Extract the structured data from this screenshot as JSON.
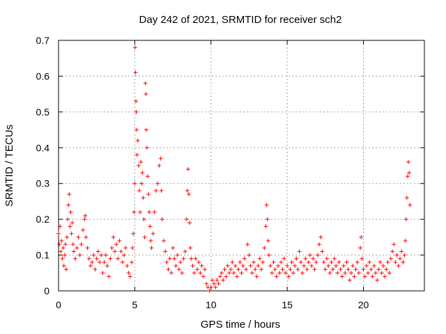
{
  "chart_data": {
    "type": "scatter",
    "title": "Day 242 of 2021, SRMTID for receiver sch2",
    "xlabel": "GPS time / hours",
    "ylabel": "SRMTID / TECUs",
    "xlim": [
      0,
      24
    ],
    "ylim": [
      0,
      0.7
    ],
    "xticks": [
      0,
      5,
      10,
      15,
      20
    ],
    "xtick_labels": [
      "0",
      "5",
      "10",
      "15",
      "20"
    ],
    "yticks": [
      0,
      0.1,
      0.2,
      0.3,
      0.4,
      0.5,
      0.6,
      0.7
    ],
    "ytick_labels": [
      "0",
      "0.1",
      "0.2",
      "0.3",
      "0.4",
      "0.5",
      "0.6",
      "0.7"
    ],
    "grid": true,
    "marker": "+",
    "series": [
      {
        "name": "sch2",
        "color": "#ff0000",
        "points": [
          [
            0.0,
            0.16
          ],
          [
            0.05,
            0.13
          ],
          [
            0.1,
            0.18
          ],
          [
            0.15,
            0.11
          ],
          [
            0.2,
            0.14
          ],
          [
            0.25,
            0.09
          ],
          [
            0.3,
            0.12
          ],
          [
            0.35,
            0.07
          ],
          [
            0.4,
            0.1
          ],
          [
            0.45,
            0.13
          ],
          [
            0.5,
            0.06
          ],
          [
            0.55,
            0.15
          ],
          [
            0.6,
            0.2
          ],
          [
            0.65,
            0.24
          ],
          [
            0.7,
            0.27
          ],
          [
            0.75,
            0.18
          ],
          [
            0.8,
            0.22
          ],
          [
            0.85,
            0.16
          ],
          [
            0.9,
            0.19
          ],
          [
            0.95,
            0.13
          ],
          [
            1.0,
            0.11
          ],
          [
            1.1,
            0.09
          ],
          [
            1.2,
            0.12
          ],
          [
            1.3,
            0.15
          ],
          [
            1.4,
            0.1
          ],
          [
            1.5,
            0.13
          ],
          [
            1.6,
            0.17
          ],
          [
            1.7,
            0.2
          ],
          [
            1.75,
            0.21
          ],
          [
            1.8,
            0.15
          ],
          [
            1.9,
            0.12
          ],
          [
            2.0,
            0.09
          ],
          [
            2.1,
            0.07
          ],
          [
            2.2,
            0.08
          ],
          [
            2.3,
            0.1
          ],
          [
            2.4,
            0.06
          ],
          [
            2.5,
            0.09
          ],
          [
            2.6,
            0.11
          ],
          [
            2.7,
            0.08
          ],
          [
            2.8,
            0.1
          ],
          [
            2.9,
            0.05
          ],
          [
            3.0,
            0.08
          ],
          [
            3.1,
            0.1
          ],
          [
            3.2,
            0.07
          ],
          [
            3.3,
            0.04
          ],
          [
            3.4,
            0.09
          ],
          [
            3.5,
            0.12
          ],
          [
            3.6,
            0.15
          ],
          [
            3.7,
            0.11
          ],
          [
            3.8,
            0.13
          ],
          [
            3.9,
            0.09
          ],
          [
            4.0,
            0.14
          ],
          [
            4.1,
            0.11
          ],
          [
            4.2,
            0.08
          ],
          [
            4.3,
            0.1
          ],
          [
            4.4,
            0.12
          ],
          [
            4.5,
            0.07
          ],
          [
            4.6,
            0.05
          ],
          [
            4.7,
            0.04
          ],
          [
            4.8,
            0.08
          ],
          [
            4.85,
            0.12
          ],
          [
            4.9,
            0.16
          ],
          [
            4.95,
            0.22
          ],
          [
            5.0,
            0.3
          ],
          [
            5.02,
            0.68
          ],
          [
            5.05,
            0.61
          ],
          [
            5.08,
            0.53
          ],
          [
            5.1,
            0.5
          ],
          [
            5.12,
            0.45
          ],
          [
            5.15,
            0.38
          ],
          [
            5.2,
            0.42
          ],
          [
            5.25,
            0.35
          ],
          [
            5.3,
            0.28
          ],
          [
            5.35,
            0.22
          ],
          [
            5.4,
            0.36
          ],
          [
            5.45,
            0.3
          ],
          [
            5.5,
            0.33
          ],
          [
            5.55,
            0.26
          ],
          [
            5.6,
            0.2
          ],
          [
            5.65,
            0.15
          ],
          [
            5.7,
            0.58
          ],
          [
            5.73,
            0.55
          ],
          [
            5.76,
            0.45
          ],
          [
            5.8,
            0.4
          ],
          [
            5.85,
            0.32
          ],
          [
            5.9,
            0.27
          ],
          [
            5.95,
            0.22
          ],
          [
            6.0,
            0.18
          ],
          [
            6.05,
            0.14
          ],
          [
            6.1,
            0.12
          ],
          [
            6.2,
            0.16
          ],
          [
            6.3,
            0.22
          ],
          [
            6.4,
            0.28
          ],
          [
            6.5,
            0.3
          ],
          [
            6.6,
            0.35
          ],
          [
            6.7,
            0.37
          ],
          [
            6.75,
            0.28
          ],
          [
            6.8,
            0.2
          ],
          [
            6.9,
            0.14
          ],
          [
            7.0,
            0.11
          ],
          [
            7.1,
            0.08
          ],
          [
            7.2,
            0.06
          ],
          [
            7.3,
            0.09
          ],
          [
            7.4,
            0.05
          ],
          [
            7.5,
            0.12
          ],
          [
            7.6,
            0.09
          ],
          [
            7.7,
            0.07
          ],
          [
            7.8,
            0.1
          ],
          [
            7.9,
            0.06
          ],
          [
            8.0,
            0.08
          ],
          [
            8.1,
            0.05
          ],
          [
            8.2,
            0.09
          ],
          [
            8.3,
            0.11
          ],
          [
            8.4,
            0.2
          ],
          [
            8.45,
            0.28
          ],
          [
            8.5,
            0.34
          ],
          [
            8.55,
            0.27
          ],
          [
            8.6,
            0.19
          ],
          [
            8.65,
            0.12
          ],
          [
            8.7,
            0.09
          ],
          [
            8.8,
            0.07
          ],
          [
            8.9,
            0.05
          ],
          [
            9.0,
            0.09
          ],
          [
            9.1,
            0.06
          ],
          [
            9.2,
            0.08
          ],
          [
            9.3,
            0.05
          ],
          [
            9.4,
            0.07
          ],
          [
            9.5,
            0.04
          ],
          [
            9.6,
            0.06
          ],
          [
            9.7,
            0.02
          ],
          [
            9.8,
            0.01
          ],
          [
            9.9,
            0.0
          ],
          [
            10.0,
            0.01
          ],
          [
            10.1,
            0.03
          ],
          [
            10.2,
            0.02
          ],
          [
            10.3,
            0.01
          ],
          [
            10.4,
            0.03
          ],
          [
            10.5,
            0.02
          ],
          [
            10.6,
            0.04
          ],
          [
            10.7,
            0.05
          ],
          [
            10.8,
            0.03
          ],
          [
            10.9,
            0.06
          ],
          [
            11.0,
            0.04
          ],
          [
            11.1,
            0.07
          ],
          [
            11.2,
            0.05
          ],
          [
            11.3,
            0.06
          ],
          [
            11.4,
            0.08
          ],
          [
            11.5,
            0.05
          ],
          [
            11.6,
            0.07
          ],
          [
            11.7,
            0.04
          ],
          [
            11.8,
            0.06
          ],
          [
            11.9,
            0.08
          ],
          [
            12.0,
            0.05
          ],
          [
            12.1,
            0.07
          ],
          [
            12.2,
            0.09
          ],
          [
            12.3,
            0.06
          ],
          [
            12.4,
            0.13
          ],
          [
            12.5,
            0.1
          ],
          [
            12.6,
            0.07
          ],
          [
            12.7,
            0.05
          ],
          [
            12.8,
            0.08
          ],
          [
            12.9,
            0.06
          ],
          [
            13.0,
            0.04
          ],
          [
            13.1,
            0.07
          ],
          [
            13.2,
            0.09
          ],
          [
            13.3,
            0.06
          ],
          [
            13.4,
            0.08
          ],
          [
            13.5,
            0.12
          ],
          [
            13.6,
            0.18
          ],
          [
            13.65,
            0.24
          ],
          [
            13.7,
            0.2
          ],
          [
            13.75,
            0.14
          ],
          [
            13.8,
            0.1
          ],
          [
            13.9,
            0.07
          ],
          [
            14.0,
            0.05
          ],
          [
            14.1,
            0.08
          ],
          [
            14.2,
            0.06
          ],
          [
            14.3,
            0.04
          ],
          [
            14.4,
            0.07
          ],
          [
            14.5,
            0.05
          ],
          [
            14.6,
            0.08
          ],
          [
            14.7,
            0.06
          ],
          [
            14.8,
            0.09
          ],
          [
            14.9,
            0.05
          ],
          [
            15.0,
            0.07
          ],
          [
            15.1,
            0.04
          ],
          [
            15.2,
            0.06
          ],
          [
            15.3,
            0.08
          ],
          [
            15.4,
            0.05
          ],
          [
            15.5,
            0.07
          ],
          [
            15.6,
            0.09
          ],
          [
            15.7,
            0.06
          ],
          [
            15.8,
            0.11
          ],
          [
            15.9,
            0.08
          ],
          [
            16.0,
            0.05
          ],
          [
            16.1,
            0.07
          ],
          [
            16.2,
            0.09
          ],
          [
            16.3,
            0.06
          ],
          [
            16.4,
            0.08
          ],
          [
            16.5,
            0.1
          ],
          [
            16.6,
            0.07
          ],
          [
            16.7,
            0.09
          ],
          [
            16.8,
            0.06
          ],
          [
            16.9,
            0.08
          ],
          [
            17.0,
            0.1
          ],
          [
            17.1,
            0.13
          ],
          [
            17.2,
            0.15
          ],
          [
            17.3,
            0.11
          ],
          [
            17.4,
            0.08
          ],
          [
            17.5,
            0.06
          ],
          [
            17.6,
            0.09
          ],
          [
            17.7,
            0.07
          ],
          [
            17.8,
            0.05
          ],
          [
            17.9,
            0.08
          ],
          [
            18.0,
            0.06
          ],
          [
            18.1,
            0.09
          ],
          [
            18.2,
            0.07
          ],
          [
            18.3,
            0.05
          ],
          [
            18.4,
            0.08
          ],
          [
            18.5,
            0.06
          ],
          [
            18.6,
            0.04
          ],
          [
            18.7,
            0.07
          ],
          [
            18.8,
            0.05
          ],
          [
            18.9,
            0.08
          ],
          [
            19.0,
            0.06
          ],
          [
            19.1,
            0.03
          ],
          [
            19.2,
            0.05
          ],
          [
            19.3,
            0.07
          ],
          [
            19.4,
            0.04
          ],
          [
            19.5,
            0.06
          ],
          [
            19.6,
            0.08
          ],
          [
            19.7,
            0.05
          ],
          [
            19.8,
            0.12
          ],
          [
            19.85,
            0.15
          ],
          [
            19.9,
            0.09
          ],
          [
            20.0,
            0.06
          ],
          [
            20.1,
            0.04
          ],
          [
            20.2,
            0.07
          ],
          [
            20.3,
            0.05
          ],
          [
            20.4,
            0.08
          ],
          [
            20.5,
            0.06
          ],
          [
            20.6,
            0.04
          ],
          [
            20.7,
            0.07
          ],
          [
            20.8,
            0.05
          ],
          [
            20.9,
            0.03
          ],
          [
            21.0,
            0.06
          ],
          [
            21.1,
            0.08
          ],
          [
            21.2,
            0.05
          ],
          [
            21.3,
            0.07
          ],
          [
            21.4,
            0.04
          ],
          [
            21.5,
            0.06
          ],
          [
            21.6,
            0.08
          ],
          [
            21.7,
            0.05
          ],
          [
            21.8,
            0.09
          ],
          [
            21.9,
            0.11
          ],
          [
            22.0,
            0.13
          ],
          [
            22.1,
            0.08
          ],
          [
            22.2,
            0.1
          ],
          [
            22.3,
            0.07
          ],
          [
            22.4,
            0.09
          ],
          [
            22.5,
            0.11
          ],
          [
            22.6,
            0.08
          ],
          [
            22.7,
            0.1
          ],
          [
            22.75,
            0.14
          ],
          [
            22.8,
            0.2
          ],
          [
            22.85,
            0.26
          ],
          [
            22.9,
            0.32
          ],
          [
            22.95,
            0.36
          ],
          [
            23.0,
            0.33
          ],
          [
            23.05,
            0.24
          ]
        ]
      }
    ]
  }
}
